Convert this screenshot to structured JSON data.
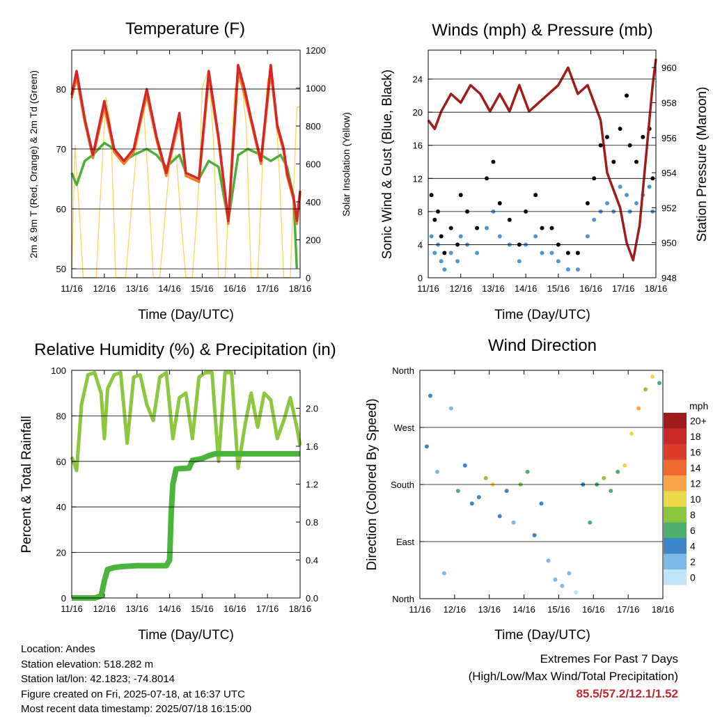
{
  "info": {
    "location": "Location: Andes",
    "elevation": "Station elevation: 518.282 m",
    "latlon": "Station lat/lon: 42.1823; -74.8014",
    "created": "Figure created on Fri, 2025-07-18, at 16:37 UTC",
    "recent": "Most recent data timestamp: 2025/07/18 16:15:00"
  },
  "extremes": {
    "line1": "Extremes For Past 7 Days",
    "line2": "(High/Low/Max Wind/Total Precipitation)",
    "values": "85.5/57.2/12.1/1.52"
  },
  "colors": {
    "temp2m": "#d62728",
    "temp9m": "#f07f2a",
    "dewpoint": "#4caf3c",
    "solar": "#f5d96b",
    "wind": "#4f97d4",
    "gust": "#000000",
    "pressure": "#a01c1c",
    "rh": "#8dc63f",
    "precip": "#4ab43c"
  },
  "chart_data": [
    {
      "type": "line",
      "title": "Temperature (F)",
      "xlabel": "Time (Day/UTC)",
      "ylabel": "2m & 9m T (Red, Orange) & 2m Td (Green)",
      "y2label": "Solar Insolation (Yellow)",
      "x_ticks": [
        "11/16",
        "12/16",
        "13/16",
        "14/16",
        "15/16",
        "16/16",
        "17/16",
        "18/16"
      ],
      "y_ticks": [
        "50",
        "60",
        "70",
        "80"
      ],
      "y2_ticks": [
        "0",
        "200",
        "400",
        "600",
        "800",
        "1000",
        "1200"
      ],
      "xlim": [
        0,
        7
      ],
      "ylim": [
        48.5,
        86.5
      ],
      "y2lim": [
        0,
        1200
      ],
      "series": [
        {
          "name": "2m T",
          "x": [
            0,
            0.15,
            0.4,
            0.65,
            1,
            1.3,
            1.6,
            1.9,
            2.3,
            2.6,
            2.9,
            3.3,
            3.5,
            3.9,
            4.2,
            4.5,
            4.8,
            5.1,
            5.3,
            5.5,
            5.8,
            6.1,
            6.3,
            6.5,
            6.6,
            6.8,
            6.9,
            7
          ],
          "values": [
            79,
            83,
            75,
            69,
            78,
            70,
            68,
            70,
            80,
            72,
            66,
            76,
            66,
            65,
            83,
            72,
            58,
            84,
            80,
            75,
            68,
            84,
            74,
            70,
            66,
            62,
            58,
            63
          ]
        },
        {
          "name": "9m T",
          "x": [
            0,
            0.15,
            0.4,
            0.65,
            1,
            1.3,
            1.6,
            1.9,
            2.3,
            2.6,
            2.9,
            3.3,
            3.5,
            3.9,
            4.2,
            4.5,
            4.8,
            5.1,
            5.3,
            5.5,
            5.8,
            6.1,
            6.3,
            6.5,
            6.6,
            6.8,
            6.9,
            7
          ],
          "values": [
            78.5,
            82,
            74.5,
            68.5,
            77,
            69.5,
            67.5,
            69.5,
            79,
            71.5,
            65.5,
            75,
            65.5,
            64.5,
            82,
            71.5,
            57.5,
            83,
            79,
            74.5,
            67.5,
            83,
            73.5,
            69.5,
            65.5,
            61.5,
            57.5,
            62.5
          ]
        },
        {
          "name": "2m Td",
          "x": [
            0,
            0.15,
            0.4,
            0.65,
            1,
            1.3,
            1.6,
            1.9,
            2.3,
            2.6,
            2.9,
            3.3,
            3.5,
            3.9,
            4.2,
            4.5,
            4.8,
            5.1,
            5.4,
            5.8,
            6.1,
            6.4,
            6.6,
            6.8,
            6.9
          ],
          "values": [
            66,
            64,
            68,
            69,
            71,
            70,
            68,
            69,
            70,
            69,
            67,
            69,
            66,
            65,
            68,
            67,
            58,
            69,
            70,
            69,
            68,
            69,
            67,
            62,
            50
          ]
        },
        {
          "name": "Solar",
          "x": [
            0,
            0.1,
            0.25,
            0.35,
            0.5,
            0.6,
            0.75,
            0.9,
            1.05,
            1.2,
            1.35,
            1.5,
            1.65,
            1.8,
            2.0,
            2.2,
            2.35,
            2.5,
            2.7,
            2.9,
            3.0,
            3.2,
            3.35,
            3.5,
            3.7,
            3.9,
            4.0,
            4.2,
            4.35,
            4.5,
            4.7,
            4.9,
            5.0,
            5.2,
            5.35,
            5.5,
            5.7,
            5.9,
            6.0,
            6.2,
            6.35,
            6.5,
            6.7,
            6.9,
            7
          ],
          "values": [
            0,
            700,
            300,
            0,
            0,
            0,
            0,
            500,
            950,
            800,
            0,
            0,
            0,
            300,
            700,
            900,
            500,
            0,
            0,
            400,
            600,
            650,
            300,
            0,
            0,
            500,
            1000,
            1100,
            700,
            0,
            0,
            700,
            1000,
            1050,
            800,
            0,
            0,
            800,
            1050,
            1000,
            600,
            0,
            0,
            900,
            900
          ]
        }
      ]
    },
    {
      "type": "scatter",
      "title": "Winds (mph) & Pressure (mb)",
      "xlabel": "Time (Day/UTC)",
      "ylabel": "Sonic Wind & Gust (Blue, Black)",
      "y2label": "Station Pressure (Maroon)",
      "x_ticks": [
        "11/16",
        "12/16",
        "13/16",
        "14/16",
        "15/16",
        "16/16",
        "17/16",
        "18/16"
      ],
      "y_ticks": [
        "0",
        "4",
        "8",
        "12",
        "16",
        "20",
        "24"
      ],
      "y2_ticks": [
        "948",
        "950",
        "952",
        "954",
        "956",
        "958",
        "960"
      ],
      "xlim": [
        0,
        7
      ],
      "ylim": [
        0,
        27.5
      ],
      "y2lim": [
        948,
        961
      ],
      "series": [
        {
          "name": "Gust",
          "x": [
            0.1,
            0.2,
            0.3,
            0.4,
            0.5,
            0.7,
            0.9,
            1.0,
            1.2,
            1.5,
            1.8,
            2.0,
            2.2,
            2.5,
            2.8,
            3.0,
            3.3,
            3.5,
            3.8,
            4.0,
            4.3,
            4.6,
            4.9,
            5.1,
            5.3,
            5.5,
            5.7,
            5.9,
            6.1,
            6.2,
            6.4,
            6.6,
            6.8,
            6.9
          ],
          "values": [
            10,
            7,
            8,
            5,
            3,
            6,
            4,
            10,
            8,
            6,
            12,
            14,
            9,
            7,
            4,
            8,
            10,
            6,
            6,
            4,
            3,
            3,
            9,
            12,
            16,
            17,
            14,
            18,
            22,
            16,
            14,
            17,
            18,
            12
          ]
        },
        {
          "name": "Wind",
          "x": [
            0.1,
            0.2,
            0.3,
            0.4,
            0.5,
            0.7,
            0.9,
            1.0,
            1.2,
            1.5,
            1.8,
            2.0,
            2.2,
            2.5,
            2.8,
            3.0,
            3.3,
            3.5,
            3.8,
            4.0,
            4.3,
            4.6,
            4.9,
            5.1,
            5.3,
            5.5,
            5.7,
            5.9,
            6.1,
            6.2,
            6.4,
            6.6,
            6.8,
            6.9
          ],
          "values": [
            5,
            3,
            4,
            2,
            1,
            3,
            2,
            5,
            4,
            3,
            6,
            8,
            5,
            4,
            2,
            4,
            5,
            3,
            3,
            2,
            1,
            1,
            5,
            7,
            8,
            9,
            8,
            11,
            10,
            8,
            9,
            10,
            11,
            8
          ]
        },
        {
          "name": "Pressure",
          "x": [
            0,
            0.2,
            0.4,
            0.7,
            1.0,
            1.3,
            1.6,
            1.9,
            2.2,
            2.5,
            2.8,
            3.1,
            3.4,
            3.7,
            4.0,
            4.3,
            4.6,
            4.9,
            5.1,
            5.3,
            5.5,
            5.7,
            5.9,
            6.1,
            6.3,
            6.5,
            6.7,
            6.9,
            7
          ],
          "values": [
            957,
            956.5,
            957.5,
            958.5,
            958,
            959,
            958.5,
            957.5,
            958.5,
            957.5,
            959,
            957.5,
            958,
            958.5,
            959,
            960,
            958.5,
            959,
            958,
            957,
            954,
            953,
            952,
            950,
            949,
            951,
            955,
            959,
            960.5
          ]
        }
      ]
    },
    {
      "type": "line",
      "title": "Relative Humidity (%) & Precipitation (in)",
      "xlabel": "Time (Day/UTC)",
      "ylabel": "Percent & Total Rainfall",
      "x_ticks": [
        "11/16",
        "12/16",
        "13/16",
        "14/16",
        "15/16",
        "16/16",
        "17/16",
        "18/16"
      ],
      "y_ticks": [
        "0",
        "20",
        "40",
        "60",
        "80",
        "100"
      ],
      "y2_ticks": [
        "0.0",
        "0.4",
        "0.8",
        "1.2",
        "1.6",
        "2.0"
      ],
      "xlim": [
        0,
        7
      ],
      "ylim": [
        0,
        100
      ],
      "y2lim": [
        0,
        2.4
      ],
      "series": [
        {
          "name": "RH",
          "x": [
            0,
            0.15,
            0.3,
            0.5,
            0.7,
            0.9,
            1.0,
            1.1,
            1.3,
            1.5,
            1.7,
            1.9,
            2.1,
            2.3,
            2.5,
            2.7,
            2.9,
            3.1,
            3.3,
            3.5,
            3.7,
            3.9,
            4.1,
            4.3,
            4.5,
            4.7,
            4.9,
            5.1,
            5.3,
            5.5,
            5.7,
            5.9,
            6.1,
            6.3,
            6.5,
            6.7,
            6.9,
            7
          ],
          "values": [
            62,
            56,
            85,
            98,
            99,
            90,
            70,
            92,
            98,
            99,
            68,
            97,
            98,
            85,
            78,
            97,
            99,
            70,
            88,
            90,
            70,
            97,
            99,
            99,
            60,
            99,
            99,
            57,
            75,
            90,
            75,
            90,
            87,
            70,
            78,
            88,
            75,
            67
          ]
        },
        {
          "name": "Precipitation",
          "x": [
            0,
            0.7,
            0.9,
            1.0,
            1.1,
            1.3,
            1.5,
            2.0,
            2.5,
            2.9,
            3.0,
            3.05,
            3.1,
            3.2,
            3.6,
            3.7,
            4.0,
            4.2,
            4.4,
            6.0,
            7
          ],
          "values": [
            0,
            0,
            0.02,
            0.18,
            0.3,
            0.32,
            0.33,
            0.34,
            0.34,
            0.34,
            0.4,
            0.9,
            1.2,
            1.36,
            1.37,
            1.45,
            1.47,
            1.5,
            1.52,
            1.52,
            1.52
          ]
        }
      ]
    },
    {
      "type": "scatter",
      "title": "Wind Direction",
      "xlabel": "Time (Day/UTC)",
      "ylabel": "Direction (Colored By Speed)",
      "x_ticks": [
        "11/16",
        "12/16",
        "13/16",
        "14/16",
        "15/16",
        "16/16",
        "17/16",
        "18/16"
      ],
      "y_ticks": [
        "North",
        "East",
        "South",
        "West",
        "North"
      ],
      "xlim": [
        0,
        7
      ],
      "ylim": [
        0,
        360
      ],
      "colorbar_title": "mph",
      "colorbar_labels": [
        "20+",
        "18",
        "16",
        "14",
        "12",
        "10",
        "8",
        "6",
        "4",
        "2",
        "0"
      ],
      "colorbar_colors": [
        "#a01c1c",
        "#c82828",
        "#dc3c2c",
        "#ee6a30",
        "#f7a44a",
        "#ecd94a",
        "#8cc63f",
        "#4caf6e",
        "#3b86c6",
        "#7db9e8",
        "#bfe3f7"
      ],
      "points": {
        "x": [
          0.2,
          0.3,
          0.5,
          0.7,
          0.9,
          1.1,
          1.3,
          1.5,
          1.7,
          1.9,
          2.1,
          2.3,
          2.5,
          2.7,
          2.9,
          3.1,
          3.3,
          3.5,
          3.7,
          3.9,
          4.1,
          4.3,
          4.5,
          4.7,
          4.9,
          5.1,
          5.3,
          5.5,
          5.7,
          5.9,
          6.1,
          6.3,
          6.5,
          6.7,
          6.9
        ],
        "direction": [
          240,
          320,
          200,
          40,
          300,
          170,
          210,
          150,
          160,
          190,
          180,
          130,
          170,
          120,
          180,
          200,
          100,
          150,
          60,
          30,
          20,
          40,
          10,
          180,
          120,
          180,
          190,
          170,
          200,
          210,
          260,
          300,
          330,
          350,
          340
        ],
        "speed": [
          4,
          3,
          2,
          1,
          2,
          5,
          3,
          4,
          4,
          7,
          9,
          4,
          3,
          2,
          8,
          6,
          3,
          4,
          1,
          1,
          1,
          1,
          0,
          3,
          5,
          6,
          7,
          5,
          6,
          9,
          10,
          11,
          8,
          9,
          6
        ]
      }
    }
  ]
}
